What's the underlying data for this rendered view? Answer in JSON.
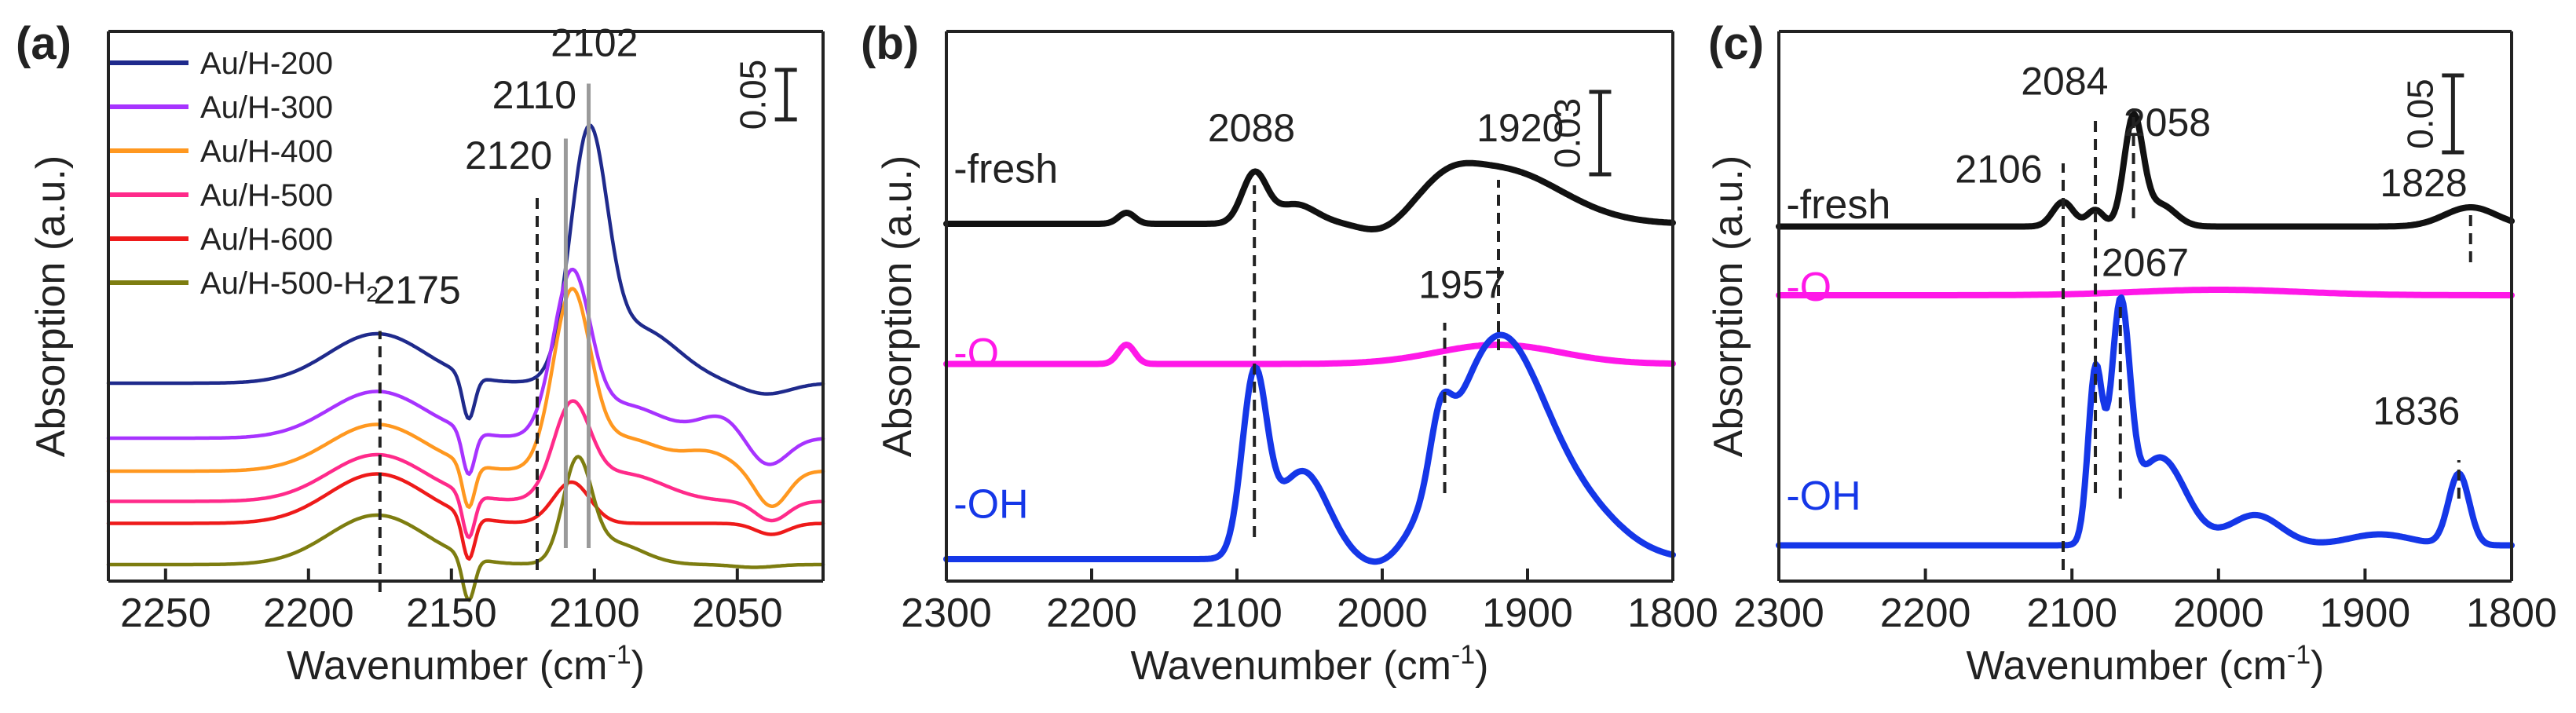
{
  "colors": {
    "axis": "#222222",
    "blue": "#1537e8",
    "magenta": "#ff18e8",
    "black": "#111111"
  },
  "chart_data": [
    {
      "panel": "(a)",
      "type": "line",
      "xlabel": "Wavenumber (cm",
      "xlabel_sup": "-1",
      "xlabel_end": ")",
      "ylabel": "Absorption (a.u.)",
      "xlim": [
        2270,
        2020
      ],
      "ylim": [
        0,
        10
      ],
      "xticks": [
        2250,
        2200,
        2150,
        2100,
        2050
      ],
      "scale_bar": {
        "label": "0.05",
        "size": 0.9,
        "x": 2033,
        "y": 9.3
      },
      "legend": {
        "position": "top-left",
        "entries": [
          {
            "label": "Au/H-200",
            "sub": "",
            "color": "#1f2a8c"
          },
          {
            "label": "Au/H-300",
            "sub": "",
            "color": "#a733ff"
          },
          {
            "label": "Au/H-400",
            "sub": "",
            "color": "#ff9820"
          },
          {
            "label": "Au/H-500",
            "sub": "",
            "color": "#ff2a8a"
          },
          {
            "label": "Au/H-600",
            "sub": "",
            "color": "#ee1a1a"
          },
          {
            "label": "Au/H-500-H",
            "sub": "2",
            "color": "#7d7d10"
          }
        ]
      },
      "series": [
        {
          "name": "Au/H-200",
          "color": "#1f2a8c",
          "baseline": 3.6,
          "slope": 0,
          "peaks": [
            [
              2176,
              24,
              0.9
            ],
            [
              2102,
              9,
              4.2
            ],
            [
              2085,
              20,
              1.0
            ]
          ],
          "dips": [
            [
              2144,
              3,
              0.8
            ],
            [
              2040,
              12,
              0.2
            ]
          ]
        },
        {
          "name": "Au/H-300",
          "color": "#a733ff",
          "baseline": 2.6,
          "slope": 0,
          "peaks": [
            [
              2176,
              24,
              0.85
            ],
            [
              2108,
              9,
              2.8
            ],
            [
              2090,
              20,
              0.6
            ],
            [
              2055,
              12,
              0.4
            ]
          ],
          "dips": [
            [
              2144,
              3,
              0.8
            ],
            [
              2040,
              10,
              0.55
            ]
          ]
        },
        {
          "name": "Au/H-400",
          "color": "#ff9820",
          "baseline": 2.0,
          "slope": 0,
          "peaks": [
            [
              2176,
              24,
              0.85
            ],
            [
              2108,
              9,
              3.05
            ],
            [
              2090,
              20,
              0.6
            ],
            [
              2060,
              12,
              0.3
            ]
          ],
          "dips": [
            [
              2144,
              3,
              0.8
            ],
            [
              2038,
              8,
              0.65
            ]
          ]
        },
        {
          "name": "Au/H-500",
          "color": "#ff2a8a",
          "baseline": 1.45,
          "slope": 0,
          "peaks": [
            [
              2176,
              24,
              0.85
            ],
            [
              2108,
              9,
              1.6
            ],
            [
              2090,
              20,
              0.5
            ]
          ],
          "dips": [
            [
              2144,
              3,
              0.8
            ],
            [
              2038,
              8,
              0.35
            ]
          ]
        },
        {
          "name": "Au/H-600",
          "color": "#ee1a1a",
          "baseline": 1.05,
          "slope": 0,
          "peaks": [
            [
              2176,
              24,
              0.9
            ],
            [
              2108,
              9,
              0.75
            ]
          ],
          "dips": [
            [
              2144,
              3,
              0.8
            ],
            [
              2038,
              8,
              0.2
            ]
          ]
        },
        {
          "name": "Au/H-500-H2",
          "color": "#7d7d10",
          "baseline": 0.3,
          "slope": 0,
          "peaks": [
            [
              2176,
              24,
              0.9
            ],
            [
              2106,
              7,
              1.75
            ],
            [
              2094,
              15,
              0.4
            ]
          ],
          "dips": [
            [
              2144,
              3,
              0.8
            ],
            [
              2044,
              10,
              0.05
            ]
          ]
        }
      ],
      "annotations": [
        {
          "text": "2175",
          "x": 2162,
          "y": 5.05
        },
        {
          "text": "2120",
          "x": 2130,
          "y": 7.5
        },
        {
          "text": "2110",
          "x": 2121,
          "y": 8.6
        },
        {
          "text": "2102",
          "x": 2100,
          "y": 9.55
        }
      ],
      "guides": [
        {
          "x": 2175,
          "y1": -0.2,
          "y2": 4.55,
          "style": "dash"
        },
        {
          "x": 2120,
          "y1": 0.2,
          "y2": 7.05,
          "style": "dash"
        },
        {
          "x": 2110,
          "y1": 0.6,
          "y2": 8.05,
          "style": "solid"
        },
        {
          "x": 2102,
          "y1": 0.6,
          "y2": 9.05,
          "style": "solid"
        }
      ]
    },
    {
      "panel": "(b)",
      "type": "line",
      "xlabel": "Wavenumber (cm",
      "xlabel_sup": "-1",
      "xlabel_end": ")",
      "ylabel": "Absorption (a.u.)",
      "xlim": [
        2300,
        1800
      ],
      "ylim": [
        0,
        10
      ],
      "xticks": [
        2300,
        2200,
        2100,
        2000,
        1900,
        1800
      ],
      "scale_bar": {
        "label": "0.03",
        "size": 1.5,
        "x": 1850,
        "y": 8.9
      },
      "series": [
        {
          "name": "-fresh",
          "color": "#111111",
          "baseline": 6.5,
          "slope": 0,
          "peaks": [
            [
              2088,
              12,
              0.9
            ],
            [
              2060,
              20,
              0.35
            ],
            [
              2176,
              8,
              0.2
            ],
            [
              1920,
              60,
              1.0
            ],
            [
              1955,
              25,
              0.3
            ]
          ],
          "dips": [
            [
              2000,
              22,
              0.25
            ]
          ]
        },
        {
          "name": "-O",
          "color": "#ff18e8",
          "baseline": 3.95,
          "slope": 0,
          "peaks": [
            [
              2176,
              8,
              0.35
            ],
            [
              1920,
              60,
              0.35
            ]
          ],
          "dips": []
        },
        {
          "name": "-OH",
          "color": "#1537e8",
          "baseline": 0.4,
          "slope": 0,
          "peaks": [
            [
              2088,
              12,
              3.2
            ],
            [
              2055,
              25,
              1.6
            ],
            [
              1960,
              10,
              1.1
            ],
            [
              1920,
              45,
              4.0
            ],
            [
              1860,
              40,
              0.7
            ]
          ],
          "dips": [
            [
              2000,
              20,
              0.2
            ]
          ]
        }
      ],
      "series_labels": [
        {
          "text": "-fresh",
          "x": 2295,
          "y": 7.25
        },
        {
          "text": "-O",
          "x": 2295,
          "y": 3.9
        },
        {
          "text": "-OH",
          "x": 2295,
          "y": 1.15
        }
      ],
      "annotations": [
        {
          "text": "2088",
          "x": 2090,
          "y": 8.0
        },
        {
          "text": "1920",
          "x": 1905,
          "y": 8.0
        },
        {
          "text": "1957",
          "x": 1945,
          "y": 5.15
        }
      ],
      "guides": [
        {
          "x": 2088,
          "y1": 0.8,
          "y2": 7.2,
          "style": "dash"
        },
        {
          "x": 1957,
          "y1": 1.6,
          "y2": 4.7,
          "style": "dash"
        },
        {
          "x": 1920,
          "y1": 4.2,
          "y2": 7.3,
          "style": "dash"
        }
      ]
    },
    {
      "panel": "(c)",
      "type": "line",
      "xlabel": "Wavenumber (cm",
      "xlabel_sup": "-1",
      "xlabel_end": ")",
      "ylabel": "Absorption (a.u.)",
      "xlim": [
        2300,
        1800
      ],
      "ylim": [
        0,
        10
      ],
      "xticks": [
        2300,
        2200,
        2100,
        2000,
        1900,
        1800
      ],
      "scale_bar": {
        "label": "0.05",
        "size": 1.4,
        "x": 1840,
        "y": 9.2
      },
      "series": [
        {
          "name": "-fresh",
          "color": "#111111",
          "baseline": 6.45,
          "slope": 0,
          "peaks": [
            [
              2106,
              10,
              0.45
            ],
            [
              2084,
              8,
              0.3
            ],
            [
              2058,
              9,
              1.95
            ],
            [
              2040,
              15,
              0.4
            ],
            [
              1828,
              25,
              0.35
            ]
          ],
          "dips": []
        },
        {
          "name": "-O",
          "color": "#ff18e8",
          "baseline": 5.2,
          "slope": 0,
          "peaks": [
            [
              2000,
              80,
              0.1
            ]
          ],
          "dips": []
        },
        {
          "name": "-OH",
          "color": "#1537e8",
          "baseline": 0.65,
          "slope": 0,
          "peaks": [
            [
              2084,
              7,
              3.1
            ],
            [
              2067,
              9,
              4.0
            ],
            [
              2040,
              25,
              1.6
            ],
            [
              1975,
              25,
              0.55
            ],
            [
              1836,
              10,
              1.3
            ],
            [
              1890,
              30,
              0.2
            ]
          ],
          "dips": []
        }
      ],
      "series_labels": [
        {
          "text": "-fresh",
          "x": 2295,
          "y": 6.6
        },
        {
          "text": "-O",
          "x": 2295,
          "y": 5.1
        },
        {
          "text": "-OH",
          "x": 2295,
          "y": 1.3
        }
      ],
      "annotations": [
        {
          "text": "2106",
          "x": 2150,
          "y": 7.25
        },
        {
          "text": "2084",
          "x": 2105,
          "y": 8.85
        },
        {
          "text": "2058",
          "x": 2035,
          "y": 8.1
        },
        {
          "text": "1828",
          "x": 1860,
          "y": 7.0
        },
        {
          "text": "2067",
          "x": 2050,
          "y": 5.55
        },
        {
          "text": "1836",
          "x": 1865,
          "y": 2.85
        }
      ],
      "guides": [
        {
          "x": 2106,
          "y1": 0.2,
          "y2": 7.6,
          "style": "dash"
        },
        {
          "x": 2084,
          "y1": 1.6,
          "y2": 8.4,
          "style": "dash"
        },
        {
          "x": 2067,
          "y1": 1.5,
          "y2": 5.0,
          "style": "dash"
        },
        {
          "x": 2058,
          "y1": 6.6,
          "y2": 8.6,
          "style": "dash"
        },
        {
          "x": 1828,
          "y1": 5.8,
          "y2": 6.75,
          "style": "dash"
        },
        {
          "x": 1836,
          "y1": 1.5,
          "y2": 2.2,
          "style": "dash"
        }
      ]
    }
  ]
}
